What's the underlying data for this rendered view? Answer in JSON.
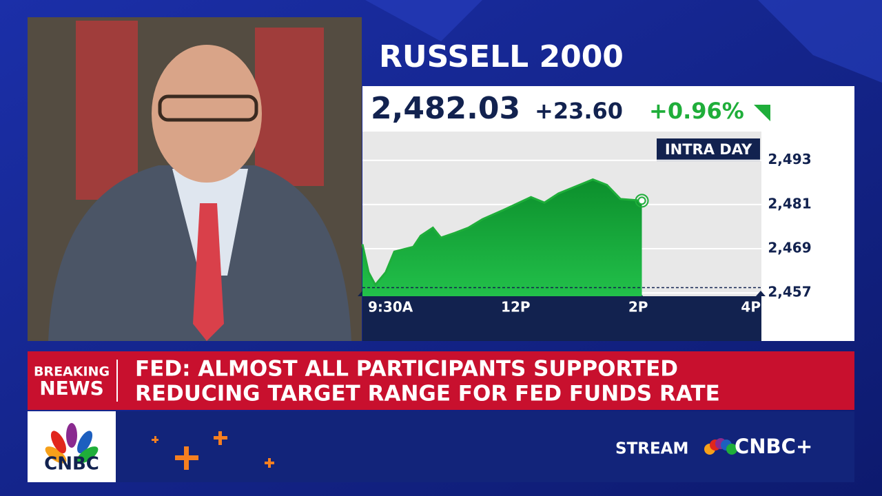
{
  "ticker": {
    "name": "RUSSELL 2000",
    "price": "2,482.03",
    "change": "+23.60",
    "percent_change": "+0.96%"
  },
  "chart_data": {
    "type": "line",
    "label": "INTRA DAY",
    "x": [
      9.5,
      9.6,
      9.71,
      9.88,
      10.02,
      10.33,
      10.45,
      10.65,
      10.78,
      11.01,
      11.23,
      11.46,
      11.8,
      12.02,
      12.25,
      12.47,
      12.7,
      13.04,
      13.26,
      13.49,
      13.71,
      13.94,
      14.06
    ],
    "values": [
      2470.2,
      2462.6,
      2459.2,
      2462.6,
      2468.2,
      2469.5,
      2472.5,
      2474.7,
      2472,
      2473.3,
      2474.7,
      2477,
      2479.5,
      2481.2,
      2483,
      2481.5,
      2484,
      2486.3,
      2487.8,
      2486.3,
      2482.5,
      2482.2,
      2482.03
    ],
    "color": "#1fae3a",
    "reference_line": 2458.43,
    "xlim": [
      9.5,
      16
    ],
    "xticks": [
      {
        "value": 9.5,
        "label": "9:30A"
      },
      {
        "value": 12,
        "label": "12P"
      },
      {
        "value": 14,
        "label": "2P"
      },
      {
        "value": 16,
        "label": "4P"
      }
    ],
    "ylim": [
      2456.1,
      2500.8
    ],
    "yticks": [
      {
        "value": 2457,
        "label": "2,457"
      },
      {
        "value": 2469,
        "label": "2,469"
      },
      {
        "value": 2481,
        "label": "2,481"
      },
      {
        "value": 2493,
        "label": "2,493"
      }
    ],
    "grid": true
  },
  "breaking": {
    "label_1": "BREAKING",
    "label_2": "NEWS",
    "headline_1": "FED: ALMOST ALL PARTICIPANTS SUPPORTED",
    "headline_2": "REDUCING TARGET RANGE FOR FED FUNDS RATE"
  },
  "footer": {
    "logo": "CNBC",
    "stream": "STREAM",
    "brand": "CNBC+"
  }
}
